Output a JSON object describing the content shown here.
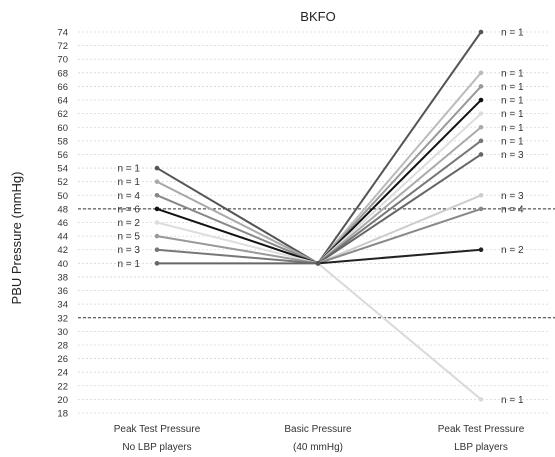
{
  "chart_data": {
    "type": "line",
    "title": "BKFO",
    "ylabel": "PBU Pressure (mmHg)",
    "xlabel": "",
    "ylim": [
      18,
      74
    ],
    "y_ticks": [
      18,
      20,
      22,
      24,
      26,
      28,
      30,
      32,
      34,
      36,
      38,
      40,
      42,
      44,
      46,
      48,
      50,
      52,
      54,
      56,
      58,
      60,
      62,
      64,
      66,
      68,
      70,
      72,
      74
    ],
    "grid": "dotted horizontal",
    "reference_lines": [
      48,
      32
    ],
    "categories": [
      {
        "line1": "Peak Test Pressure",
        "line2": "No LBP players"
      },
      {
        "line1": "Basic Pressure",
        "line2": "(40 mmHg)"
      },
      {
        "line1": "Peak Test Pressure",
        "line2": "LBP players"
      }
    ],
    "center": {
      "category": 1,
      "value": 40
    },
    "left_series": [
      {
        "value": 54,
        "label": "n = 1",
        "color": "#555555"
      },
      {
        "value": 52,
        "label": "n = 1",
        "color": "#aaaaaa"
      },
      {
        "value": 50,
        "label": "n = 4",
        "color": "#888888"
      },
      {
        "value": 48,
        "label": "n = 6",
        "color": "#111111"
      },
      {
        "value": 46,
        "label": "n = 2",
        "color": "#dddddd"
      },
      {
        "value": 44,
        "label": "n = 5",
        "color": "#999999"
      },
      {
        "value": 42,
        "label": "n = 3",
        "color": "#777777"
      },
      {
        "value": 40,
        "label": "n = 1",
        "color": "#666666"
      }
    ],
    "right_series": [
      {
        "value": 74,
        "label": "n = 1",
        "color": "#555555"
      },
      {
        "value": 68,
        "label": "n = 1",
        "color": "#bbbbbb"
      },
      {
        "value": 66,
        "label": "n = 1",
        "color": "#999999"
      },
      {
        "value": 64,
        "label": "n = 1",
        "color": "#111111"
      },
      {
        "value": 62,
        "label": "n = 1",
        "color": "#dddddd"
      },
      {
        "value": 60,
        "label": "n = 1",
        "color": "#aaaaaa"
      },
      {
        "value": 58,
        "label": "n = 1",
        "color": "#777777"
      },
      {
        "value": 56,
        "label": "n = 3",
        "color": "#666666"
      },
      {
        "value": 50,
        "label": "n = 3",
        "color": "#cccccc"
      },
      {
        "value": 48,
        "label": "n = 4",
        "color": "#888888"
      },
      {
        "value": 42,
        "label": "n = 2",
        "color": "#222222"
      },
      {
        "value": 20,
        "label": "n = 1",
        "color": "#d9d9d9"
      }
    ]
  }
}
